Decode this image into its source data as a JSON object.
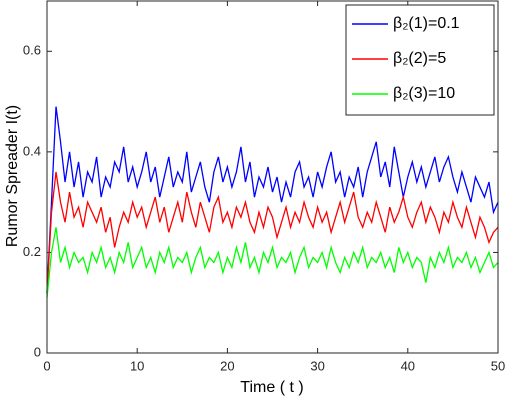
{
  "chart_data": {
    "type": "line",
    "xlabel": "Time ( t )",
    "ylabel": "Rumor Spreader I(t)",
    "xlim": [
      0,
      50
    ],
    "ylim": [
      0,
      0.7
    ],
    "xticks": [
      0,
      10,
      20,
      30,
      40,
      50
    ],
    "yticks": [
      0,
      0.2,
      0.4,
      0.6
    ],
    "legend": "upper right",
    "x": [
      0,
      0.5,
      1,
      1.5,
      2,
      2.5,
      3,
      3.5,
      4,
      4.5,
      5,
      5.5,
      6,
      6.5,
      7,
      7.5,
      8,
      8.5,
      9,
      9.5,
      10,
      10.5,
      11,
      11.5,
      12,
      12.5,
      13,
      13.5,
      14,
      14.5,
      15,
      15.5,
      16,
      16.5,
      17,
      17.5,
      18,
      18.5,
      19,
      19.5,
      20,
      20.5,
      21,
      21.5,
      22,
      22.5,
      23,
      23.5,
      24,
      24.5,
      25,
      25.5,
      26,
      26.5,
      27,
      27.5,
      28,
      28.5,
      29,
      29.5,
      30,
      30.5,
      31,
      31.5,
      32,
      32.5,
      33,
      33.5,
      34,
      34.5,
      35,
      35.5,
      36,
      36.5,
      37,
      37.5,
      38,
      38.5,
      39,
      39.5,
      40,
      40.5,
      41,
      41.5,
      42,
      42.5,
      43,
      43.5,
      44,
      44.5,
      45,
      45.5,
      46,
      46.5,
      47,
      47.5,
      48,
      48.5,
      49,
      49.5,
      50
    ],
    "series": [
      {
        "name": "β₂(1)=0.1",
        "color": "#0000ff",
        "values": [
          0.12,
          0.3,
          0.49,
          0.42,
          0.34,
          0.4,
          0.33,
          0.38,
          0.31,
          0.36,
          0.34,
          0.39,
          0.31,
          0.35,
          0.33,
          0.38,
          0.36,
          0.41,
          0.34,
          0.37,
          0.33,
          0.36,
          0.4,
          0.34,
          0.37,
          0.31,
          0.35,
          0.39,
          0.33,
          0.36,
          0.34,
          0.4,
          0.32,
          0.35,
          0.38,
          0.33,
          0.3,
          0.36,
          0.39,
          0.34,
          0.37,
          0.33,
          0.36,
          0.41,
          0.34,
          0.38,
          0.31,
          0.35,
          0.33,
          0.37,
          0.32,
          0.35,
          0.3,
          0.34,
          0.31,
          0.36,
          0.38,
          0.33,
          0.35,
          0.31,
          0.36,
          0.33,
          0.37,
          0.4,
          0.34,
          0.36,
          0.31,
          0.35,
          0.33,
          0.37,
          0.31,
          0.36,
          0.39,
          0.42,
          0.35,
          0.38,
          0.33,
          0.41,
          0.36,
          0.31,
          0.35,
          0.38,
          0.34,
          0.37,
          0.33,
          0.36,
          0.39,
          0.34,
          0.37,
          0.39,
          0.35,
          0.32,
          0.36,
          0.33,
          0.3,
          0.35,
          0.33,
          0.31,
          0.34,
          0.28,
          0.3
        ]
      },
      {
        "name": "β₂(2)=5",
        "color": "#ff0000",
        "values": [
          0.12,
          0.28,
          0.36,
          0.3,
          0.26,
          0.32,
          0.27,
          0.29,
          0.25,
          0.3,
          0.28,
          0.26,
          0.29,
          0.24,
          0.27,
          0.21,
          0.25,
          0.28,
          0.26,
          0.3,
          0.27,
          0.29,
          0.25,
          0.28,
          0.31,
          0.26,
          0.29,
          0.24,
          0.27,
          0.3,
          0.26,
          0.32,
          0.28,
          0.25,
          0.3,
          0.27,
          0.24,
          0.29,
          0.31,
          0.26,
          0.28,
          0.25,
          0.29,
          0.27,
          0.3,
          0.26,
          0.24,
          0.28,
          0.25,
          0.29,
          0.27,
          0.23,
          0.26,
          0.29,
          0.25,
          0.28,
          0.26,
          0.3,
          0.27,
          0.25,
          0.29,
          0.26,
          0.28,
          0.24,
          0.27,
          0.3,
          0.26,
          0.29,
          0.32,
          0.27,
          0.25,
          0.28,
          0.26,
          0.3,
          0.27,
          0.24,
          0.29,
          0.26,
          0.28,
          0.31,
          0.27,
          0.25,
          0.28,
          0.3,
          0.26,
          0.29,
          0.27,
          0.24,
          0.28,
          0.26,
          0.3,
          0.27,
          0.25,
          0.29,
          0.26,
          0.23,
          0.27,
          0.25,
          0.22,
          0.24,
          0.25
        ]
      },
      {
        "name": "β₂(3)=10",
        "color": "#00ff00",
        "values": [
          0.11,
          0.2,
          0.25,
          0.18,
          0.21,
          0.17,
          0.2,
          0.18,
          0.19,
          0.16,
          0.2,
          0.18,
          0.21,
          0.17,
          0.19,
          0.16,
          0.2,
          0.18,
          0.22,
          0.17,
          0.19,
          0.21,
          0.17,
          0.19,
          0.16,
          0.2,
          0.18,
          0.21,
          0.17,
          0.19,
          0.18,
          0.2,
          0.16,
          0.19,
          0.21,
          0.17,
          0.19,
          0.18,
          0.2,
          0.16,
          0.19,
          0.17,
          0.21,
          0.18,
          0.22,
          0.17,
          0.19,
          0.16,
          0.2,
          0.18,
          0.21,
          0.17,
          0.19,
          0.18,
          0.2,
          0.16,
          0.19,
          0.21,
          0.17,
          0.19,
          0.18,
          0.2,
          0.17,
          0.21,
          0.18,
          0.16,
          0.19,
          0.17,
          0.2,
          0.18,
          0.21,
          0.17,
          0.19,
          0.18,
          0.2,
          0.17,
          0.19,
          0.16,
          0.21,
          0.18,
          0.2,
          0.17,
          0.19,
          0.18,
          0.14,
          0.19,
          0.17,
          0.2,
          0.18,
          0.21,
          0.17,
          0.19,
          0.18,
          0.2,
          0.17,
          0.19,
          0.16,
          0.18,
          0.2,
          0.17,
          0.18
        ]
      }
    ]
  }
}
